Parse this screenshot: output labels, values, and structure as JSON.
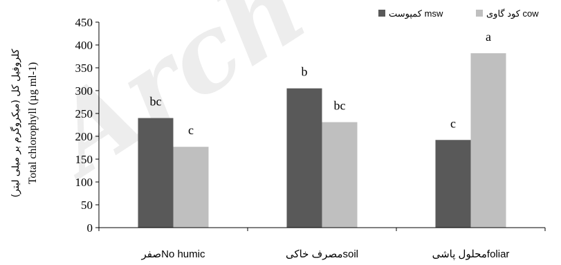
{
  "watermark": "Arch",
  "chart_data": {
    "type": "bar",
    "ylabel": "Total chlorophyll (µg ml-1)",
    "ylabel_fa": "کلروفیل کل (میکروگرم بر میلی لیتر)",
    "ylim": [
      0,
      450
    ],
    "yticks": [
      "0",
      "50",
      "100",
      "150",
      "200",
      "250",
      "300",
      "350",
      "400",
      "450"
    ],
    "grid": false,
    "legend_placement": "top-right",
    "categories": [
      "صفرNo humic",
      "مصرف خاکیsoil",
      "محلول پاشیfoliar"
    ],
    "series": [
      {
        "name": "کمپوست msw",
        "color": "#595959",
        "values": [
          240,
          305,
          192
        ],
        "labels": [
          "bc",
          "b",
          "c"
        ]
      },
      {
        "name": "کود گاوی cow",
        "color": "#bfbfbf",
        "values": [
          177,
          231,
          382
        ],
        "labels": [
          "c",
          "bc",
          "a"
        ]
      }
    ]
  }
}
